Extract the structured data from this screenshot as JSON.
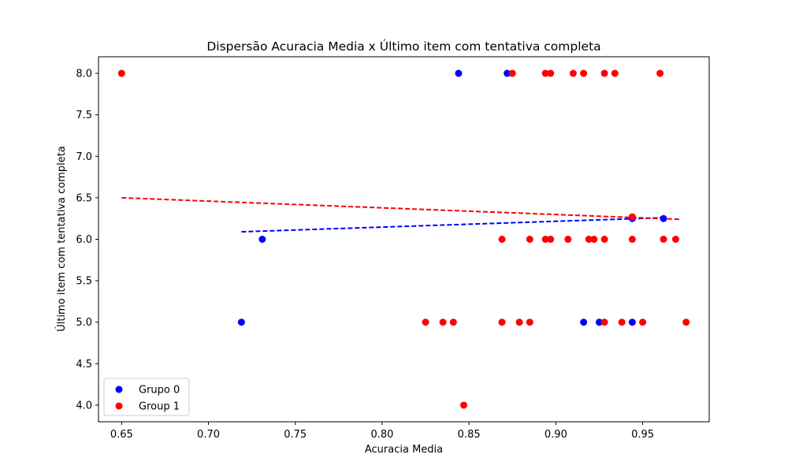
{
  "chart_data": {
    "type": "scatter",
    "title": "Dispersão Acuracia Media x Último item com tentativa completa",
    "xlabel": "Acuracia Media",
    "ylabel": "Último item com tentativa completa",
    "xlim": [
      0.6367,
      0.9883
    ],
    "ylim": [
      3.8,
      8.2
    ],
    "x_ticks": [
      0.65,
      0.7,
      0.75,
      0.8,
      0.85,
      0.9,
      0.95
    ],
    "x_tick_labels": [
      "0.65",
      "0.70",
      "0.75",
      "0.80",
      "0.85",
      "0.90",
      "0.95"
    ],
    "y_ticks": [
      4.0,
      4.5,
      5.0,
      5.5,
      6.0,
      6.5,
      7.0,
      7.5,
      8.0
    ],
    "y_tick_labels": [
      "4.0",
      "4.5",
      "5.0",
      "5.5",
      "6.0",
      "6.5",
      "7.0",
      "7.5",
      "8.0"
    ],
    "grid": false,
    "legend_position": "lower-left",
    "series": [
      {
        "name": "Grupo 0",
        "color": "#0000ff",
        "points": [
          [
            0.719,
            5.0
          ],
          [
            0.731,
            6.0
          ],
          [
            0.844,
            8.0
          ],
          [
            0.872,
            8.0
          ],
          [
            0.916,
            5.0
          ],
          [
            0.925,
            5.0
          ],
          [
            0.944,
            5.0
          ],
          [
            0.944,
            6.25
          ],
          [
            0.962,
            6.25
          ]
        ],
        "trend": {
          "style": "dashed",
          "x": [
            0.719,
            0.962
          ],
          "y": [
            6.09,
            6.26
          ]
        }
      },
      {
        "name": "Group 1",
        "color": "#ff0000",
        "points": [
          [
            0.65,
            8.0
          ],
          [
            0.825,
            5.0
          ],
          [
            0.835,
            5.0
          ],
          [
            0.841,
            5.0
          ],
          [
            0.847,
            4.0
          ],
          [
            0.869,
            5.0
          ],
          [
            0.869,
            6.0
          ],
          [
            0.875,
            8.0
          ],
          [
            0.879,
            5.0
          ],
          [
            0.885,
            5.0
          ],
          [
            0.885,
            6.0
          ],
          [
            0.894,
            6.0
          ],
          [
            0.894,
            8.0
          ],
          [
            0.897,
            6.0
          ],
          [
            0.897,
            8.0
          ],
          [
            0.907,
            6.0
          ],
          [
            0.91,
            8.0
          ],
          [
            0.916,
            8.0
          ],
          [
            0.919,
            6.0
          ],
          [
            0.922,
            6.0
          ],
          [
            0.928,
            6.0
          ],
          [
            0.928,
            5.0
          ],
          [
            0.928,
            8.0
          ],
          [
            0.934,
            8.0
          ],
          [
            0.938,
            5.0
          ],
          [
            0.944,
            6.0
          ],
          [
            0.944,
            6.27
          ],
          [
            0.95,
            5.0
          ],
          [
            0.96,
            8.0
          ],
          [
            0.962,
            6.0
          ],
          [
            0.969,
            6.0
          ],
          [
            0.975,
            5.0
          ]
        ],
        "trend": {
          "style": "dashed",
          "x": [
            0.65,
            0.972
          ],
          "y": [
            6.5,
            6.24
          ]
        }
      }
    ]
  }
}
